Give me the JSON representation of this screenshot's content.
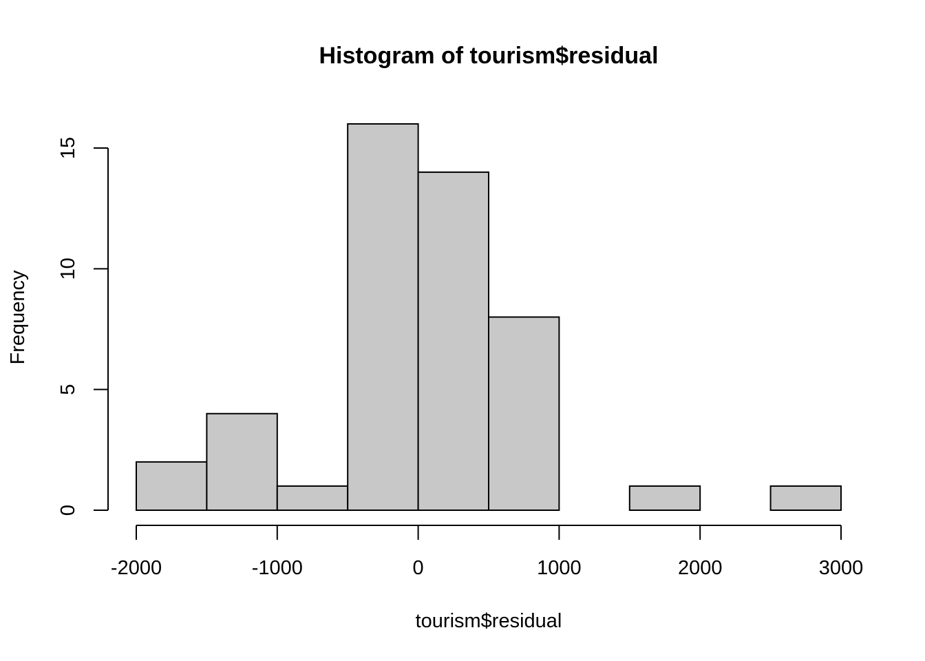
{
  "chart_data": {
    "type": "bar",
    "title": "Histogram of tourism$residual",
    "xlabel": "tourism$residual",
    "ylabel": "Frequency",
    "bins": [
      {
        "from": -2000,
        "to": -1500,
        "count": 2
      },
      {
        "from": -1500,
        "to": -1000,
        "count": 4
      },
      {
        "from": -1000,
        "to": -500,
        "count": 1
      },
      {
        "from": -500,
        "to": 0,
        "count": 16
      },
      {
        "from": 0,
        "to": 500,
        "count": 14
      },
      {
        "from": 500,
        "to": 1000,
        "count": 8
      },
      {
        "from": 1000,
        "to": 1500,
        "count": 0
      },
      {
        "from": 1500,
        "to": 2000,
        "count": 1
      },
      {
        "from": 2000,
        "to": 2500,
        "count": 0
      },
      {
        "from": 2500,
        "to": 3000,
        "count": 1
      }
    ],
    "xlim": [
      -2000,
      3000
    ],
    "x_ticks": [
      -2000,
      -1000,
      0,
      1000,
      2000,
      3000
    ],
    "ylim": [
      0,
      16
    ],
    "y_ticks": [
      0,
      5,
      10,
      15
    ],
    "bar_color": "#c8c8c8",
    "border_color": "#000000",
    "grid": false,
    "legend": "none"
  }
}
